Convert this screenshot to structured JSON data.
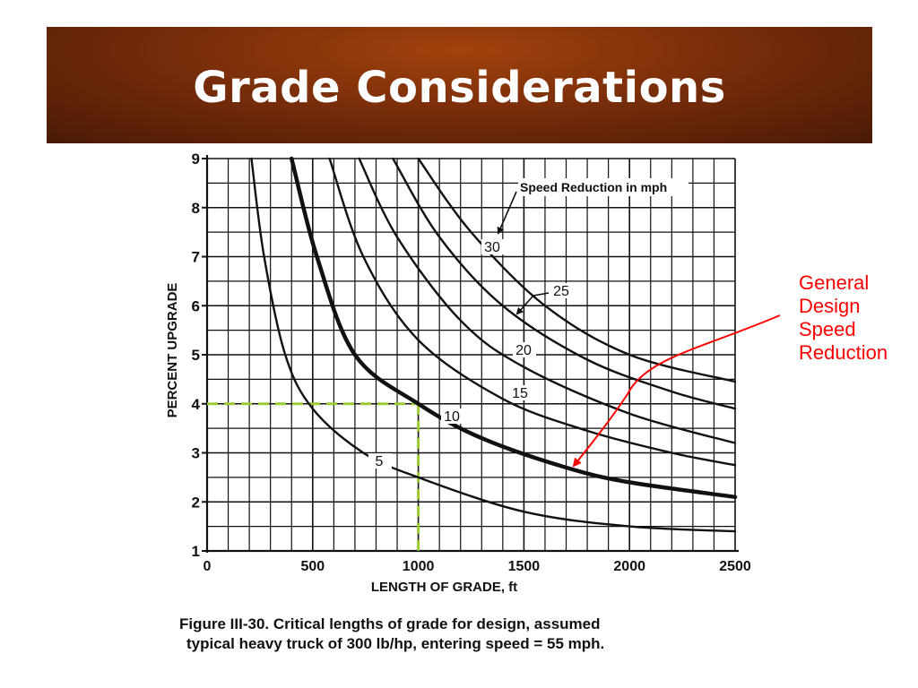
{
  "slide": {
    "title": "Grade Considerations",
    "callout_lines": [
      "General",
      "Design",
      "Speed",
      "Reduction"
    ],
    "caption_lines": [
      "Figure III-30. Critical lengths of grade for design, assumed",
      "typical heavy truck of 300 lb/hp, entering speed = 55 mph."
    ],
    "colors": {
      "title_bg": "#7a2e0a",
      "title_text": "#ffffff",
      "callout": "#ff0000",
      "guide": "#99cc33",
      "ink": "#111111"
    }
  },
  "chart_data": {
    "type": "line",
    "xlabel": "LENGTH OF GRADE, ft",
    "ylabel": "PERCENT UPGRADE",
    "xlim": [
      0,
      2500
    ],
    "ylim": [
      1,
      9
    ],
    "x_ticks": [
      "0",
      "500",
      "1000",
      "1500",
      "2000",
      "2500"
    ],
    "y_ticks": [
      "1",
      "2",
      "3",
      "4",
      "5",
      "6",
      "7",
      "8",
      "9"
    ],
    "grid": true,
    "legend_title": "Speed Reduction in mph",
    "series": [
      {
        "name": "5",
        "points": [
          [
            210,
            9
          ],
          [
            270,
            7
          ],
          [
            370,
            5
          ],
          [
            500,
            3.9
          ],
          [
            740,
            3.0
          ],
          [
            1000,
            2.5
          ],
          [
            1500,
            1.8
          ],
          [
            2000,
            1.5
          ],
          [
            2500,
            1.4
          ]
        ]
      },
      {
        "name": "10",
        "points": [
          [
            400,
            9
          ],
          [
            520,
            7
          ],
          [
            700,
            5
          ],
          [
            1000,
            4.0
          ],
          [
            1300,
            3.3
          ],
          [
            1700,
            2.7
          ],
          [
            2000,
            2.4
          ],
          [
            2500,
            2.1
          ]
        ]
      },
      {
        "name": "15",
        "points": [
          [
            580,
            9
          ],
          [
            740,
            7
          ],
          [
            1000,
            5.3
          ],
          [
            1400,
            4.1
          ],
          [
            1800,
            3.45
          ],
          [
            2200,
            3.0
          ],
          [
            2500,
            2.75
          ]
        ]
      },
      {
        "name": "20",
        "points": [
          [
            720,
            9
          ],
          [
            900,
            7.4
          ],
          [
            1200,
            5.7
          ],
          [
            1500,
            4.75
          ],
          [
            2000,
            3.8
          ],
          [
            2500,
            3.2
          ]
        ]
      },
      {
        "name": "25",
        "points": [
          [
            880,
            9
          ],
          [
            1100,
            7.4
          ],
          [
            1400,
            6.0
          ],
          [
            1800,
            4.9
          ],
          [
            2200,
            4.25
          ],
          [
            2500,
            3.9
          ]
        ]
      },
      {
        "name": "30",
        "points": [
          [
            1000,
            9
          ],
          [
            1250,
            7.5
          ],
          [
            1600,
            6.0
          ],
          [
            2000,
            5.0
          ],
          [
            2500,
            4.45
          ]
        ]
      }
    ],
    "highlight": {
      "x": 1000,
      "y": 4
    },
    "annotation": "General Design Speed Reduction"
  }
}
